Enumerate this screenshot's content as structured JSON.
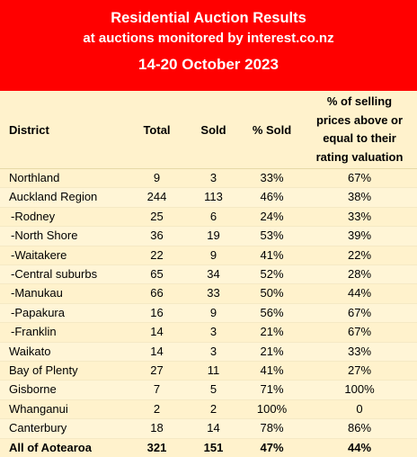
{
  "header": {
    "title": "Residential Auction Results",
    "subtitle": "at auctions monitored by interest.co.nz",
    "date_range": "14-20 October 2023"
  },
  "table": {
    "columns": {
      "district": "District",
      "total": "Total",
      "sold": "Sold",
      "pct_sold": "% Sold",
      "pct_above_l1": "% of selling",
      "pct_above_l2": "prices above or",
      "pct_above_l3": "equal to their",
      "pct_above_l4": "rating valuation"
    },
    "rows": [
      {
        "district": "Northland",
        "total": "9",
        "sold": "3",
        "pct_sold": "33%",
        "pct_above": "67%"
      },
      {
        "district": "Auckland Region",
        "total": "244",
        "sold": "113",
        "pct_sold": "46%",
        "pct_above": "38%"
      },
      {
        "district": "-Rodney",
        "total": "25",
        "sold": "6",
        "pct_sold": "24%",
        "pct_above": "33%"
      },
      {
        "district": "-North Shore",
        "total": "36",
        "sold": "19",
        "pct_sold": "53%",
        "pct_above": "39%"
      },
      {
        "district": "-Waitakere",
        "total": "22",
        "sold": "9",
        "pct_sold": "41%",
        "pct_above": "22%"
      },
      {
        "district": "-Central suburbs",
        "total": "65",
        "sold": "34",
        "pct_sold": "52%",
        "pct_above": "28%"
      },
      {
        "district": "-Manukau",
        "total": "66",
        "sold": "33",
        "pct_sold": "50%",
        "pct_above": "44%"
      },
      {
        "district": "-Papakura",
        "total": "16",
        "sold": "9",
        "pct_sold": "56%",
        "pct_above": "67%"
      },
      {
        "district": "-Franklin",
        "total": "14",
        "sold": "3",
        "pct_sold": "21%",
        "pct_above": "67%"
      },
      {
        "district": "Waikato",
        "total": "14",
        "sold": "3",
        "pct_sold": "21%",
        "pct_above": "33%"
      },
      {
        "district": "Bay of Plenty",
        "total": "27",
        "sold": "11",
        "pct_sold": "41%",
        "pct_above": "27%"
      },
      {
        "district": "Gisborne",
        "total": "7",
        "sold": "5",
        "pct_sold": "71%",
        "pct_above": "100%"
      },
      {
        "district": "Whanganui",
        "total": "2",
        "sold": "2",
        "pct_sold": "100%",
        "pct_above": "0"
      },
      {
        "district": "Canterbury",
        "total": "18",
        "sold": "14",
        "pct_sold": "78%",
        "pct_above": "86%"
      }
    ],
    "total_row": {
      "district": "All of Aotearoa",
      "total": "321",
      "sold": "151",
      "pct_sold": "47%",
      "pct_above": "44%"
    }
  },
  "colors": {
    "banner_bg": "#ff0000",
    "banner_text": "#ffffff",
    "table_bg": "#fff2cc"
  }
}
